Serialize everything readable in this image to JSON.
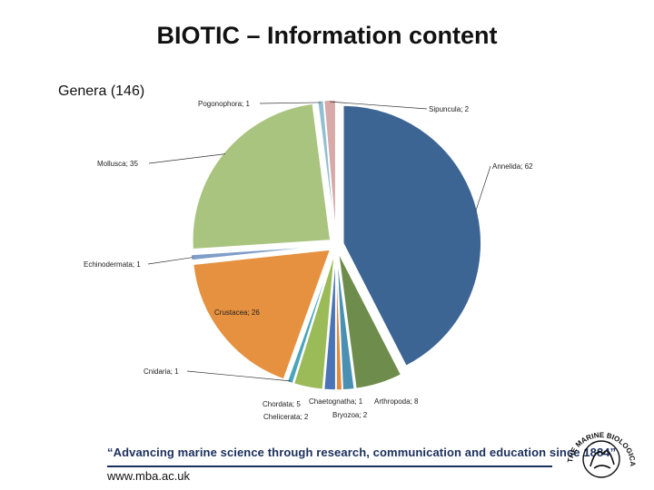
{
  "title": "BIOTIC – Information content",
  "subtitle": "Genera (146)",
  "chart_data": {
    "type": "pie",
    "exploded": true,
    "slices": [
      {
        "label": "Annelida; 62",
        "name": "Annelida",
        "value": 62,
        "color": "#3c6594"
      },
      {
        "label": "Arthropoda; 8",
        "name": "Arthropoda",
        "value": 8,
        "color": "#6e8c4b"
      },
      {
        "label": "Bryozoa; 2",
        "name": "Bryozoa",
        "value": 2,
        "color": "#4a90b2"
      },
      {
        "label": "Chaetognatha; 1",
        "name": "Chaetognatha",
        "value": 1,
        "color": "#e58a3a"
      },
      {
        "label": "Chelicerata; 2",
        "name": "Chelicerata",
        "value": 2,
        "color": "#4a73b8"
      },
      {
        "label": "Chordata; 5",
        "name": "Chordata",
        "value": 5,
        "color": "#9bbb59"
      },
      {
        "label": "Cnidaria; 1",
        "name": "Cnidaria",
        "value": 1,
        "color": "#4aa5bb"
      },
      {
        "label": "Crustacea; 26",
        "name": "Crustacea",
        "value": 26,
        "color": "#e6913f"
      },
      {
        "label": "Echinodermata; 1",
        "name": "Echinodermata",
        "value": 1,
        "color": "#7f9ec8"
      },
      {
        "label": "Mollusca; 35",
        "name": "Mollusca",
        "value": 35,
        "color": "#a9c47f"
      },
      {
        "label": "Pogonophora; 1",
        "name": "Pogonophora",
        "value": 1,
        "color": "#8fbfd1"
      },
      {
        "label": "Sipuncula; 2",
        "name": "Sipuncula",
        "value": 2,
        "color": "#d7a9a8"
      }
    ]
  },
  "footer": {
    "quote": "“Advancing marine science through research, communication and education since 1884”",
    "url": "www.mba.ac.uk",
    "logo_text": "THE MARINE BIOLOGICAL ASSOCIATION"
  }
}
